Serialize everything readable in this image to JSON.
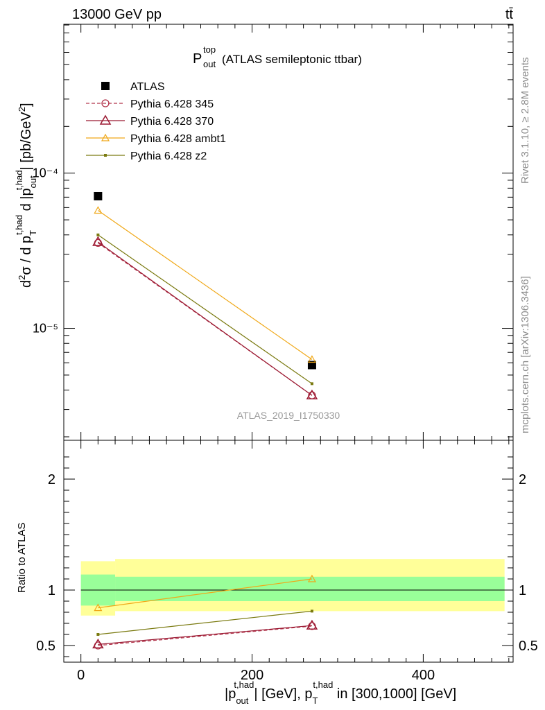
{
  "header": {
    "energy": "13000 GeV pp",
    "process": "tt̄",
    "title_main": "P",
    "title_sup": "top",
    "title_sub": "out",
    "title_rest": "(ATLAS semileptonic ttbar)"
  },
  "side_labels": {
    "rivet": "Rivet 3.1.10, ≥ 2.8M events",
    "mcplots": "mcplots.cern.ch [arXiv:1306.3436]"
  },
  "watermark": "ATLAS_2019_I1750330",
  "ylabel_main": "d²σ / d p_T^{t,had} d |p_out^{t,had}| [pb/GeV²]",
  "ylabel_ratio": "Ratio to ATLAS",
  "xlabel": "|p_out^{t,had}| [GeV], p_T^{t,had} in [300,1000] [GeV]",
  "colors": {
    "atlas": "#000000",
    "p345": "#b2344b",
    "p370": "#9b1932",
    "ambt1": "#f0a818",
    "z2": "#7a7a10",
    "band_inner": "#99ff99",
    "band_outer": "#ffff99"
  },
  "chart_data": {
    "type": "scatter",
    "x": [
      20,
      270
    ],
    "xlim": [
      -20,
      505
    ],
    "main": {
      "yscale": "log",
      "ylim": [
        1.9e-06,
        0.00091
      ],
      "yticks": [
        {
          "value": 1e-05,
          "label": "10⁻⁵"
        },
        {
          "value": 0.0001,
          "label": "10⁻⁴"
        }
      ]
    },
    "ratio": {
      "ylim": [
        0.35,
        2.35
      ],
      "yticks": [
        0.5,
        1,
        2
      ],
      "band": {
        "bins": [
          [
            0,
            40
          ],
          [
            40,
            505
          ]
        ],
        "inner": [
          [
            0.86,
            1.14
          ],
          [
            0.9,
            1.12
          ]
        ],
        "outer": [
          [
            0.77,
            1.26
          ],
          [
            0.81,
            1.28
          ]
        ]
      }
    },
    "series": [
      {
        "name": "ATLAS",
        "values": [
          7.1e-05,
          5.8e-06
        ],
        "ratio": [
          1,
          1
        ]
      },
      {
        "name": "Pythia 6.428 345",
        "values": [
          3.55e-05,
          3.7e-06
        ],
        "ratio": [
          0.5,
          0.675
        ]
      },
      {
        "name": "Pythia 6.428 370",
        "values": [
          3.6e-05,
          3.7e-06
        ],
        "ratio": [
          0.51,
          0.68
        ]
      },
      {
        "name": "Pythia 6.428 ambt1",
        "values": [
          5.75e-05,
          6.3e-06
        ],
        "ratio": [
          0.84,
          1.1
        ]
      },
      {
        "name": "Pythia 6.428 z2",
        "values": [
          4e-05,
          4.4e-06
        ],
        "ratio": [
          0.6,
          0.81
        ]
      }
    ],
    "xticks": [
      0,
      200,
      400
    ],
    "legend_position": "top-left"
  }
}
